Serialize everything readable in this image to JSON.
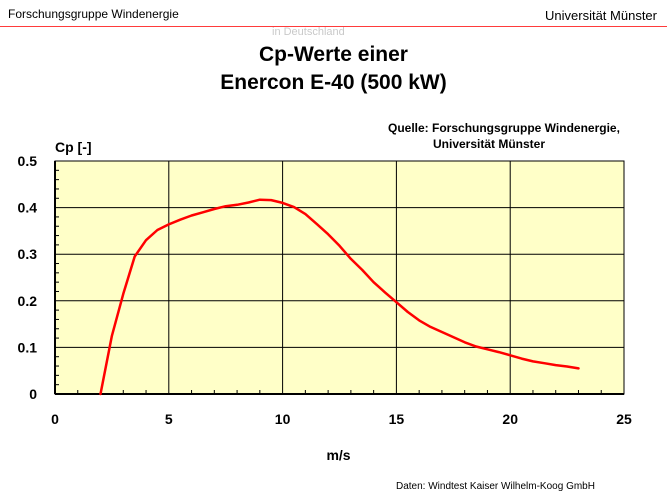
{
  "header": {
    "left_text": "Forschungsgruppe Windenergie",
    "right_text": "Universität Münster"
  },
  "ghost_text": "in Deutschland",
  "title": {
    "line1": "Cp-Werte einer",
    "line2": "Enercon E-40 (500 kW)"
  },
  "source": {
    "line1": "Quelle: Forschungsgruppe Windenergie,",
    "line2": "Universität Münster"
  },
  "footer": "Daten: Windtest Kaiser Wilhelm-Koog GmbH",
  "colors": {
    "plot_background": "#ffffc8",
    "curve": "#ff0000",
    "header_line": "#ff3b3b"
  },
  "chart_data": {
    "type": "line",
    "xlabel": "m/s",
    "ylabel": "Cp  [-]",
    "xlim": [
      0,
      25
    ],
    "ylim": [
      0,
      0.5
    ],
    "x_ticks": [
      0,
      5,
      10,
      15,
      20,
      25
    ],
    "y_ticks": [
      0,
      0.1,
      0.2,
      0.3,
      0.4,
      0.5
    ],
    "y_tick_labels": [
      "0",
      "0.1",
      "0.2",
      "0.3",
      "0.4",
      "0.5"
    ],
    "grid": true,
    "series": [
      {
        "x": [
          2.0,
          2.5,
          3.0,
          3.5,
          4.0,
          4.5,
          5.0,
          5.5,
          6.0,
          6.5,
          7.0,
          7.5,
          8.0,
          8.5,
          9.0,
          9.5,
          10.0,
          10.5,
          11.0,
          11.5,
          12.0,
          12.5,
          13.0,
          13.5,
          14.0,
          14.5,
          15.0,
          15.5,
          16.0,
          16.5,
          17.0,
          17.5,
          18.0,
          18.5,
          19.0,
          19.5,
          20.0,
          20.5,
          21.0,
          21.5,
          22.0,
          22.5,
          23.0
        ],
        "y": [
          0.0,
          0.125,
          0.215,
          0.295,
          0.33,
          0.352,
          0.364,
          0.374,
          0.383,
          0.39,
          0.397,
          0.403,
          0.406,
          0.411,
          0.417,
          0.416,
          0.41,
          0.401,
          0.386,
          0.365,
          0.343,
          0.318,
          0.29,
          0.266,
          0.24,
          0.218,
          0.197,
          0.176,
          0.158,
          0.144,
          0.133,
          0.122,
          0.111,
          0.102,
          0.096,
          0.09,
          0.083,
          0.076,
          0.07,
          0.066,
          0.062,
          0.059,
          0.055
        ]
      }
    ]
  }
}
